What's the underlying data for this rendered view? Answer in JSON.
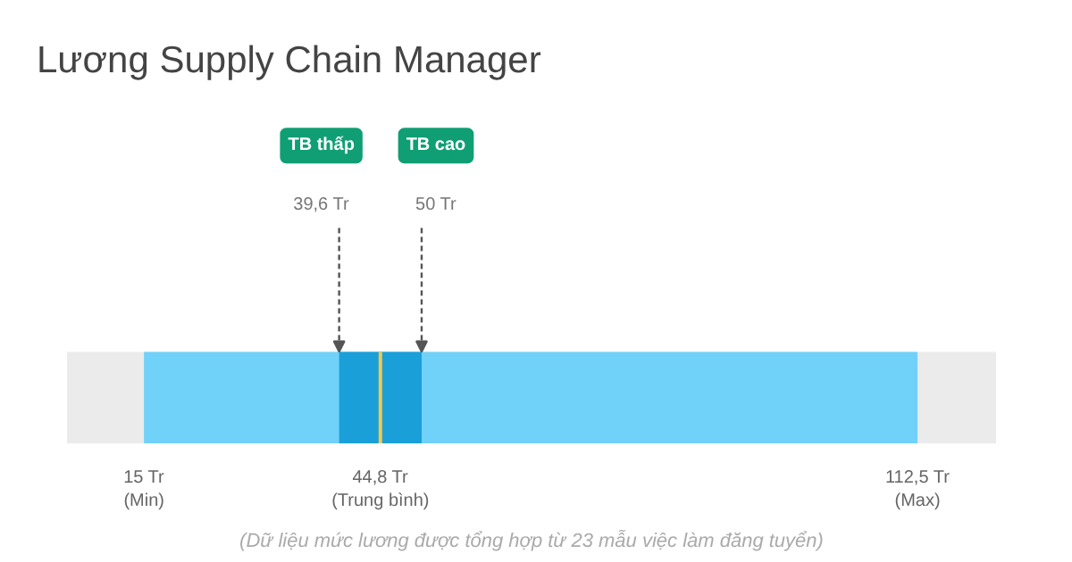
{
  "chart_data": {
    "type": "bar",
    "orientation": "horizontal",
    "title": "Lương Supply Chain Manager",
    "categories": [
      null
    ],
    "series": [
      {
        "color": "#70d1f9",
        "values": [
          97.5
        ],
        "base": [
          15
        ]
      },
      {
        "color": "#1a9fd9",
        "values": [
          10.4
        ],
        "base": [
          39.6
        ]
      }
    ],
    "xlim": [
      5.3,
      122.4
    ],
    "xticks": [
      {
        "value": 15,
        "label": "15 Tr\n(Min)"
      },
      {
        "value": 44.8,
        "label": "44,8 Tr\n(Trung bình)"
      },
      {
        "value": 112.5,
        "label": "112,5 Tr\n(Max)"
      }
    ],
    "ref_lines": [
      {
        "axis": "x",
        "value": 44.8,
        "color": "#f2c94c"
      }
    ],
    "annotations": [
      "TB thấp",
      "39,6 Tr",
      "TB cao",
      "50 Tr",
      "(Dữ liệu mức lương được tổng hợp từ 23 mẫu việc làm đăng tuyển)"
    ],
    "grid": false
  }
}
